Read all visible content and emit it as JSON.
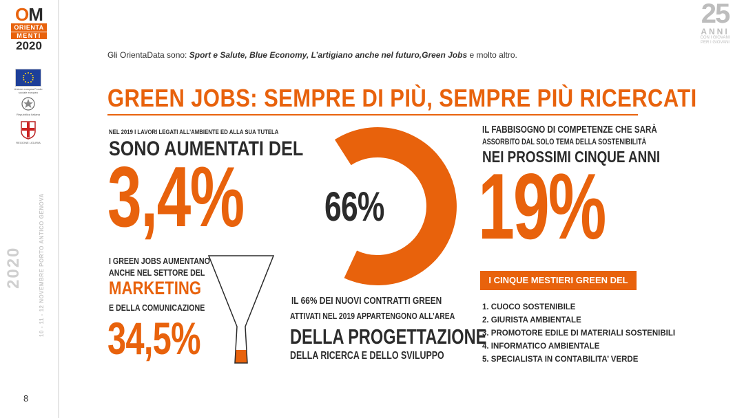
{
  "logo": {
    "om_o": "O",
    "om_m": "M",
    "orienta": "ORIENTA",
    "menti": "MENTI",
    "year": "2020"
  },
  "eu_caption": "Unione europea Fondo sociale europeo",
  "republic_caption": "Repubblica Italiana",
  "region_caption": "REGIONE LIGURIA",
  "rail": {
    "year": "2020",
    "dates": "10 - 11 - 12 NOVEMBRE PORTO ANTICO GENOVA",
    "page_number": "8"
  },
  "anniversary": {
    "number": "25",
    "word": "ANNI",
    "sub1": "CON I GIOVANI",
    "sub2": "PER I GIOVANI"
  },
  "intro": {
    "prefix": "Gli OrientaData sono: ",
    "topics": "Sport e Salute, Blue Economy, L’artigiano anche nel futuro,Green Jobs",
    "suffix": " e molto altro."
  },
  "title": "GREEN JOBS: SEMPRE DI PIÙ, SEMPRE PIÙ RICERCATI",
  "stat_growth": {
    "line1": "NEL 2019 I LAVORI LEGATI ALL’AMBIENTE ED ALLA SUA TUTELA",
    "line2": "SONO AUMENTATI DEL",
    "value": "3,4%"
  },
  "stat_marketing": {
    "line1": "I GREEN JOBS AUMENTANO",
    "line2": "ANCHE NEL SETTORE DEL",
    "highlight": "MARKETING",
    "line3": "E DELLA COMUNICAZIONE",
    "value": "34,5%",
    "fill_fraction": 0.345
  },
  "stat_contracts": {
    "ring_value": "66%",
    "ring_fraction": 0.66,
    "line1": "IL 66% DEI NUOVI CONTRATTI GREEN",
    "line2": "ATTIVATI NEL 2019 APPARTENGONO ALL’AREA",
    "line3": "DELLA PROGETTAZIONE",
    "line4": "DELLA RICERCA E DELLO SVILUPPO"
  },
  "stat_skills": {
    "line1": "IL FABBISOGNO DI COMPETENZE CHE SARÀ",
    "line2": "ASSORBITO DAL SOLO TEMA DELLA SOSTENIBILITÀ",
    "line3": "NEI PROSSIMI CINQUE ANNI",
    "value": "19%"
  },
  "jobs": {
    "heading": "I CINQUE MESTIERI GREEN DEL FUTURO",
    "items": [
      "1. CUOCO SOSTENIBILE",
      "2. GIURISTA AMBIENTALE",
      "3. PROMOTORE EDILE DI MATERIALI SOSTENIBILI",
      "4. INFORMATICO AMBIENTALE",
      "5. SPECIALISTA IN CONTABILITA’ VERDE"
    ]
  },
  "colors": {
    "accent": "#e8620c",
    "dark": "#2b2b2b",
    "ring_track": "#ffffff"
  }
}
